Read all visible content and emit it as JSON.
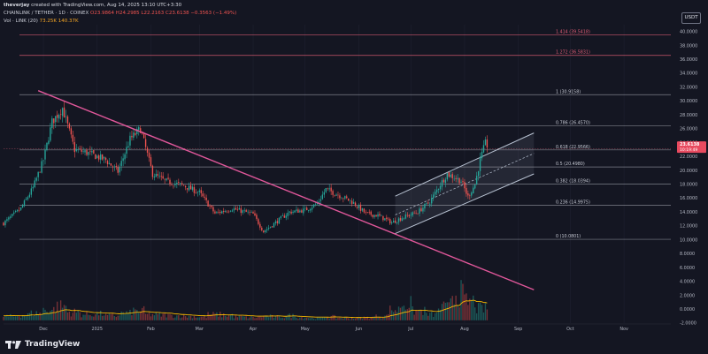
{
  "header": {
    "author": "theverjay",
    "created_text": "created with TradingView.com, Aug 14, 2025 13:10 UTC+3:30"
  },
  "legend": {
    "symbol_text": "CHAINLINK / TETHER · 1D · COINEX",
    "ohlc_text": "O23.9864 H24.2985 L22.2163 C23.6138 −0.3563 (−1.49%)",
    "volume_label": "Vol · LINK (20)",
    "volume_values": "73.25K  140.37K"
  },
  "currency_button": "USDT",
  "footer_brand": "TradingView",
  "colors": {
    "background": "#141622",
    "bull": "#26a69a",
    "bear": "#ef5350",
    "trendline": "#e0579a",
    "channel": "#b8c2d2",
    "fib": "#d6d8e0",
    "ext": "#e05d75",
    "volume_ma": "#f5b800",
    "price_tag": "#e84a5f"
  },
  "chart_data": {
    "type": "candlestick",
    "title": "",
    "symbol": "LINK/USDT",
    "timeframe": "1D",
    "exchange": "COINEX",
    "y_axis": {
      "min": -2,
      "max": 41,
      "ticks": [
        "40.0000",
        "38.0000",
        "36.0000",
        "34.0000",
        "32.0000",
        "30.0000",
        "28.0000",
        "26.0000",
        "24.0000",
        "22.0000",
        "20.0000",
        "18.0000",
        "16.0000",
        "14.0000",
        "12.0000",
        "10.0000",
        "8.0000",
        "6.0000",
        "4.0000",
        "2.0000",
        "0.0000",
        "-2.0000"
      ]
    },
    "x_axis": {
      "ticks": [
        {
          "label": "Dec",
          "date": "2024-12-01"
        },
        {
          "label": "2025",
          "date": "2025-01-01"
        },
        {
          "label": "Feb",
          "date": "2025-02-01"
        },
        {
          "label": "Mar",
          "date": "2025-03-01"
        },
        {
          "label": "Apr",
          "date": "2025-04-01"
        },
        {
          "label": "May",
          "date": "2025-05-01"
        },
        {
          "label": "Jun",
          "date": "2025-06-01"
        },
        {
          "label": "Jul",
          "date": "2025-07-01"
        },
        {
          "label": "Aug",
          "date": "2025-08-01"
        },
        {
          "label": "Sep",
          "date": "2025-09-01"
        },
        {
          "label": "Oct",
          "date": "2025-10-01"
        },
        {
          "label": "Nov",
          "date": "2025-11-01"
        }
      ]
    },
    "price_path": [
      {
        "date": "2024-11-08",
        "close": 12.4
      },
      {
        "date": "2024-11-18",
        "close": 14.5
      },
      {
        "date": "2024-11-25",
        "close": 17.5
      },
      {
        "date": "2024-12-01",
        "close": 21.5
      },
      {
        "date": "2024-12-06",
        "close": 27.0
      },
      {
        "date": "2024-12-12",
        "close": 29.0
      },
      {
        "date": "2024-12-19",
        "close": 23.0
      },
      {
        "date": "2024-12-27",
        "close": 22.5
      },
      {
        "date": "2025-01-06",
        "close": 21.5
      },
      {
        "date": "2025-01-13",
        "close": 19.8
      },
      {
        "date": "2025-01-20",
        "close": 24.5
      },
      {
        "date": "2025-01-26",
        "close": 26.0
      },
      {
        "date": "2025-02-02",
        "close": 19.5
      },
      {
        "date": "2025-02-09",
        "close": 18.5
      },
      {
        "date": "2025-02-20",
        "close": 17.8
      },
      {
        "date": "2025-03-01",
        "close": 16.8
      },
      {
        "date": "2025-03-10",
        "close": 13.8
      },
      {
        "date": "2025-03-20",
        "close": 14.5
      },
      {
        "date": "2025-04-01",
        "close": 13.7
      },
      {
        "date": "2025-04-07",
        "close": 11.2
      },
      {
        "date": "2025-04-14",
        "close": 12.5
      },
      {
        "date": "2025-04-22",
        "close": 14.0
      },
      {
        "date": "2025-05-01",
        "close": 14.3
      },
      {
        "date": "2025-05-08",
        "close": 15.2
      },
      {
        "date": "2025-05-13",
        "close": 17.3
      },
      {
        "date": "2025-05-20",
        "close": 16.5
      },
      {
        "date": "2025-05-28",
        "close": 15.5
      },
      {
        "date": "2025-06-05",
        "close": 13.8
      },
      {
        "date": "2025-06-12",
        "close": 13.5
      },
      {
        "date": "2025-06-20",
        "close": 12.5
      },
      {
        "date": "2025-06-26",
        "close": 13.2
      },
      {
        "date": "2025-07-05",
        "close": 14.0
      },
      {
        "date": "2025-07-12",
        "close": 15.5
      },
      {
        "date": "2025-07-18",
        "close": 18.0
      },
      {
        "date": "2025-07-22",
        "close": 19.5
      },
      {
        "date": "2025-07-30",
        "close": 18.5
      },
      {
        "date": "2025-08-03",
        "close": 16.2
      },
      {
        "date": "2025-08-07",
        "close": 18.0
      },
      {
        "date": "2025-08-10",
        "close": 21.5
      },
      {
        "date": "2025-08-13",
        "close": 23.9
      },
      {
        "date": "2025-08-14",
        "close": 23.6138
      }
    ],
    "volume_scale_max": 3.0,
    "volume_pattern": [
      0.35,
      0.45,
      0.6,
      0.9,
      1.2,
      0.7,
      0.5,
      0.55,
      0.4,
      0.6,
      0.8,
      0.5,
      0.45,
      0.4,
      0.35,
      0.3,
      0.5,
      0.45,
      0.3,
      0.25,
      0.35,
      0.3,
      0.4,
      0.25,
      0.2,
      0.3,
      0.22,
      0.2,
      0.25,
      0.35,
      0.9,
      1.4,
      0.8,
      0.5,
      1.1,
      2.3,
      1.6,
      1.0
    ],
    "fib_levels": [
      {
        "level": "1.414",
        "price": 39.5418,
        "label": "1.414 (39.5418)",
        "kind": "extension"
      },
      {
        "level": "1.272",
        "price": 36.5831,
        "label": "1.272 (36.5831)",
        "kind": "extension"
      },
      {
        "level": "1",
        "price": 30.9158,
        "label": "1 (30.9158)",
        "kind": "retracement"
      },
      {
        "level": "0.786",
        "price": 26.457,
        "label": "0.786 (26.4570)",
        "kind": "retracement"
      },
      {
        "level": "0.618",
        "price": 22.9566,
        "label": "0.618 (22.9566)",
        "kind": "retracement"
      },
      {
        "level": "0.5",
        "price": 20.498,
        "label": "0.5 (20.4980)",
        "kind": "retracement"
      },
      {
        "level": "0.382",
        "price": 18.0394,
        "label": "0.382 (18.0394)",
        "kind": "retracement"
      },
      {
        "level": "0.236",
        "price": 14.9975,
        "label": "0.236 (14.9975)",
        "kind": "retracement"
      },
      {
        "level": "0",
        "price": 10.0801,
        "label": "0 (10.0801)",
        "kind": "retracement"
      }
    ],
    "descending_trendline": {
      "from": {
        "date": "2024-11-28",
        "price": 31.5
      },
      "to": {
        "date": "2025-09-10",
        "price": 2.8
      }
    },
    "ascending_channel": {
      "lower_from": {
        "date": "2025-06-22",
        "price": 10.9
      },
      "lower_to": {
        "date": "2025-09-10",
        "price": 19.5
      },
      "upper_from": {
        "date": "2025-06-22",
        "price": 16.3
      },
      "upper_to": {
        "date": "2025-09-10",
        "price": 25.4
      },
      "box_start": "2025-06-22",
      "box_end": "2025-09-10"
    },
    "last_price": {
      "label": "23.6138",
      "price": 23.6138,
      "countdown": "10:19:49"
    }
  }
}
